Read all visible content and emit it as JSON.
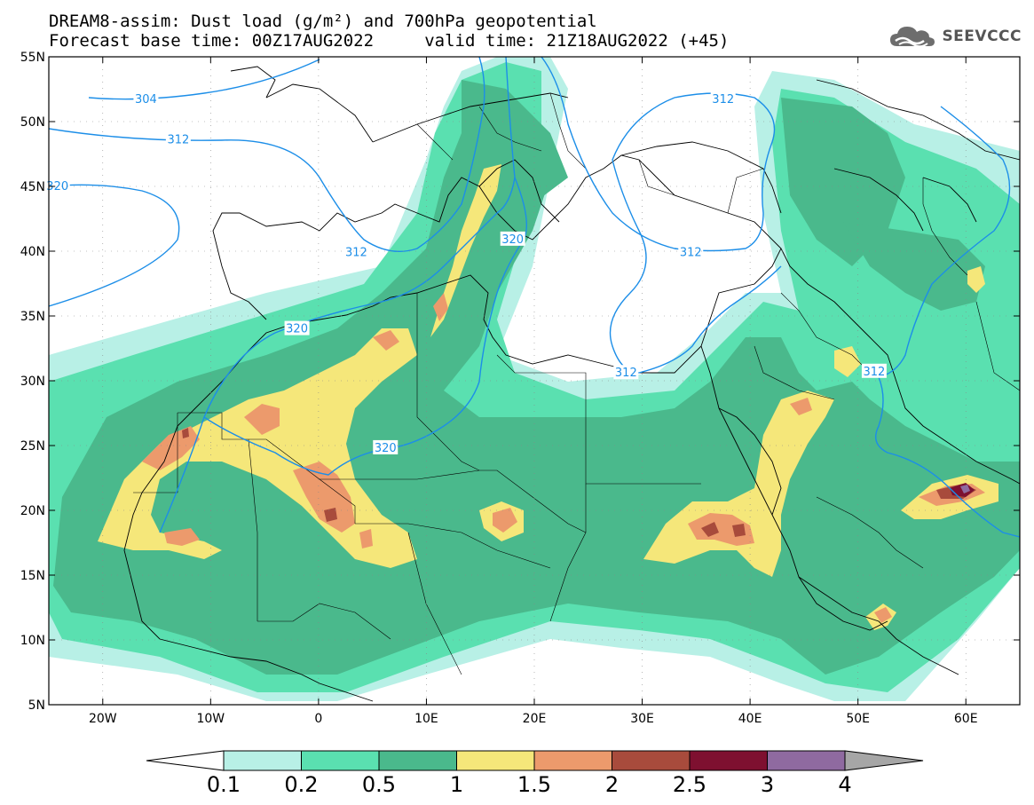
{
  "title": {
    "line1": "DREAM8-assim: Dust load (g/m²) and 700hPa geopotential",
    "line2": "Forecast base time: 00Z17AUG2022     valid time: 21Z18AUG2022 (+45)"
  },
  "logo": {
    "icon": "cloud-icon",
    "text": "SEEVCCC"
  },
  "axes": {
    "lat_ticks": [
      "55N",
      "50N",
      "45N",
      "40N",
      "35N",
      "30N",
      "25N",
      "20N",
      "15N",
      "10N",
      "5N"
    ],
    "lat_values": [
      55,
      50,
      45,
      40,
      35,
      30,
      25,
      20,
      15,
      10,
      5
    ],
    "lon_ticks": [
      "20W",
      "10W",
      "0",
      "10E",
      "20E",
      "30E",
      "40E",
      "50E",
      "60E"
    ],
    "lon_values": [
      -20,
      -10,
      0,
      10,
      20,
      30,
      40,
      50,
      60
    ],
    "lon_range": [
      -25,
      65
    ],
    "lat_range": [
      5,
      55
    ],
    "grid": "dotted"
  },
  "contour_labels": [
    {
      "text": "304",
      "lon": -16,
      "lat": 51.7
    },
    {
      "text": "312",
      "lon": -13,
      "lat": 48.6
    },
    {
      "text": "320",
      "lon": -24.2,
      "lat": 45.0
    },
    {
      "text": "312",
      "lon": 3.5,
      "lat": 39.9
    },
    {
      "text": "320",
      "lon": -2,
      "lat": 34.0
    },
    {
      "text": "320",
      "lon": 18,
      "lat": 40.9
    },
    {
      "text": "312",
      "lon": 37.5,
      "lat": 51.7
    },
    {
      "text": "312",
      "lon": 34.5,
      "lat": 39.9
    },
    {
      "text": "312",
      "lon": 28.5,
      "lat": 30.6
    },
    {
      "text": "312",
      "lon": 51.5,
      "lat": 30.7
    },
    {
      "text": "320",
      "lon": 6.2,
      "lat": 24.8
    }
  ],
  "colorbar": {
    "labels": [
      "0.1",
      "0.2",
      "0.5",
      "1",
      "1.5",
      "2",
      "2.5",
      "3",
      "4"
    ],
    "colors": [
      "#b8f0e6",
      "#5ae0b0",
      "#4ab98c",
      "#f5e77a",
      "#ec9a6c",
      "#a84b3c",
      "#7e1030",
      "#8f6aa0"
    ],
    "under_color": "#ffffff",
    "over_color": "#a6a6a6"
  },
  "colors": {
    "contour": "#1c8ee8",
    "coast": "#000000"
  }
}
